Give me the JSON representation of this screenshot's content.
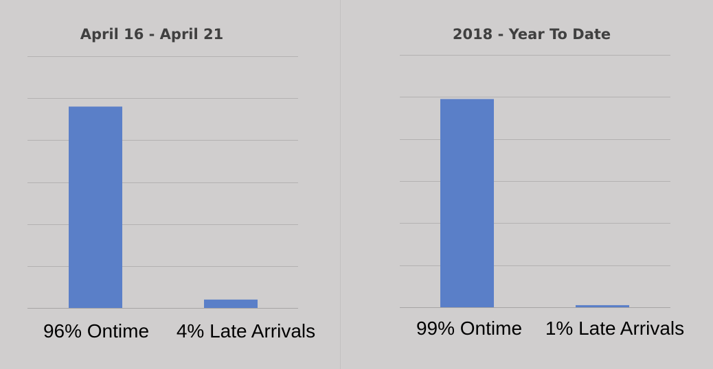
{
  "chart_data": [
    {
      "type": "bar",
      "title": "April 16 - April 21",
      "categories": [
        "96% Ontime",
        "4% Late Arrivals"
      ],
      "values": [
        96,
        4
      ],
      "ylim": [
        0,
        120
      ],
      "grid": true,
      "bar_color": "#5a7fc8"
    },
    {
      "type": "bar",
      "title": "2018 - Year To Date",
      "categories": [
        "99% Ontime",
        "1% Late Arrivals"
      ],
      "values": [
        99,
        1
      ],
      "ylim": [
        0,
        120
      ],
      "grid": true,
      "bar_color": "#5a7fc8"
    }
  ],
  "colors": {
    "background": "#d0cece",
    "gridline": "#b3b1b1",
    "axis": "#a6a4a4",
    "title": "#404040"
  }
}
